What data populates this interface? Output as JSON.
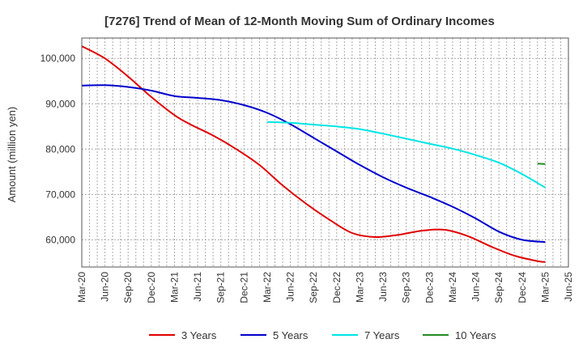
{
  "chart_data": {
    "type": "line",
    "title": "[7276]  Trend of Mean of 12-Month Moving Sum of Ordinary Incomes",
    "xlabel": "",
    "ylabel": "Amount (million yen)",
    "ylim": [
      54000,
      104500
    ],
    "yticks": [
      60000,
      70000,
      80000,
      90000,
      100000
    ],
    "ytick_labels": [
      "60,000",
      "70,000",
      "80,000",
      "90,000",
      "100,000"
    ],
    "x_start": "Mar-20",
    "x_months": 63,
    "xtick_labels": [
      "Mar-20",
      "Jun-20",
      "Sep-20",
      "Dec-20",
      "Mar-21",
      "Jun-21",
      "Sep-21",
      "Dec-21",
      "Mar-22",
      "Jun-22",
      "Sep-22",
      "Dec-22",
      "Mar-23",
      "Jun-23",
      "Sep-23",
      "Dec-23",
      "Mar-24",
      "Jun-24",
      "Sep-24",
      "Dec-24",
      "Mar-25",
      "Jun-25"
    ],
    "grid": true,
    "legend_position": "bottom",
    "series": [
      {
        "name": "3 Years",
        "color": "#e00000",
        "start_index": 0,
        "points": [
          [
            0,
            102700
          ],
          [
            3,
            100000
          ],
          [
            6,
            96000
          ],
          [
            9,
            91500
          ],
          [
            12,
            87500
          ],
          [
            14,
            85500
          ],
          [
            17,
            83000
          ],
          [
            20,
            80000
          ],
          [
            23,
            76500
          ],
          [
            26,
            72000
          ],
          [
            29,
            68000
          ],
          [
            32,
            64500
          ],
          [
            35,
            61500
          ],
          [
            38,
            60600
          ],
          [
            41,
            61100
          ],
          [
            44,
            62000
          ],
          [
            47,
            62200
          ],
          [
            50,
            60800
          ],
          [
            53,
            58500
          ],
          [
            56,
            56500
          ],
          [
            59,
            55300
          ],
          [
            60,
            55100
          ]
        ]
      },
      {
        "name": "5 Years",
        "color": "#0000cc",
        "start_index": 0,
        "points": [
          [
            0,
            94000
          ],
          [
            3,
            94100
          ],
          [
            6,
            93700
          ],
          [
            9,
            92900
          ],
          [
            12,
            91700
          ],
          [
            15,
            91300
          ],
          [
            18,
            90800
          ],
          [
            21,
            89700
          ],
          [
            24,
            88000
          ],
          [
            27,
            85500
          ],
          [
            30,
            82500
          ],
          [
            33,
            79500
          ],
          [
            36,
            76500
          ],
          [
            39,
            73800
          ],
          [
            42,
            71500
          ],
          [
            45,
            69500
          ],
          [
            48,
            67300
          ],
          [
            51,
            64700
          ],
          [
            54,
            61800
          ],
          [
            57,
            60000
          ],
          [
            60,
            59500
          ]
        ]
      },
      {
        "name": "7 Years",
        "color": "#00e5e5",
        "start_index": 24,
        "points": [
          [
            24,
            86000
          ],
          [
            27,
            85800
          ],
          [
            30,
            85400
          ],
          [
            33,
            85000
          ],
          [
            36,
            84400
          ],
          [
            39,
            83400
          ],
          [
            42,
            82300
          ],
          [
            45,
            81200
          ],
          [
            48,
            80100
          ],
          [
            51,
            78700
          ],
          [
            54,
            77000
          ],
          [
            57,
            74500
          ],
          [
            60,
            71500
          ]
        ]
      },
      {
        "name": "10 Years",
        "color": "#228b22",
        "start_index": 59,
        "points": [
          [
            59,
            76800
          ],
          [
            60,
            76700
          ]
        ]
      }
    ]
  }
}
